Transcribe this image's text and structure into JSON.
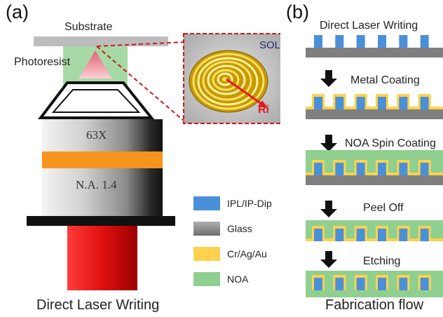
{
  "panel_a": {
    "label": "(a)",
    "substrate": "Substrate",
    "photoresist": "Photoresist",
    "magnification": "63X",
    "na": "N.A. 1.4",
    "inset_sol": "SOL",
    "inset_ri": "Ri",
    "caption": "Direct Laser Writing"
  },
  "panel_b": {
    "label": "(b)",
    "steps": [
      {
        "label": "Direct Laser Writing"
      },
      {
        "label": "Metal Coating"
      },
      {
        "label": "NOA Spin Coating"
      },
      {
        "label": "Peel Off"
      },
      {
        "label": "Etching"
      }
    ],
    "caption": "Fabrication flow"
  },
  "legend": [
    {
      "label": "IPL/IP-Dip",
      "color": "#4a90d9"
    },
    {
      "label": "Glass",
      "color": "#8a8a8a"
    },
    {
      "label": "Cr/Ag/Au",
      "color": "#ffd24d"
    },
    {
      "label": "NOA",
      "color": "#8fcf8f"
    }
  ]
}
